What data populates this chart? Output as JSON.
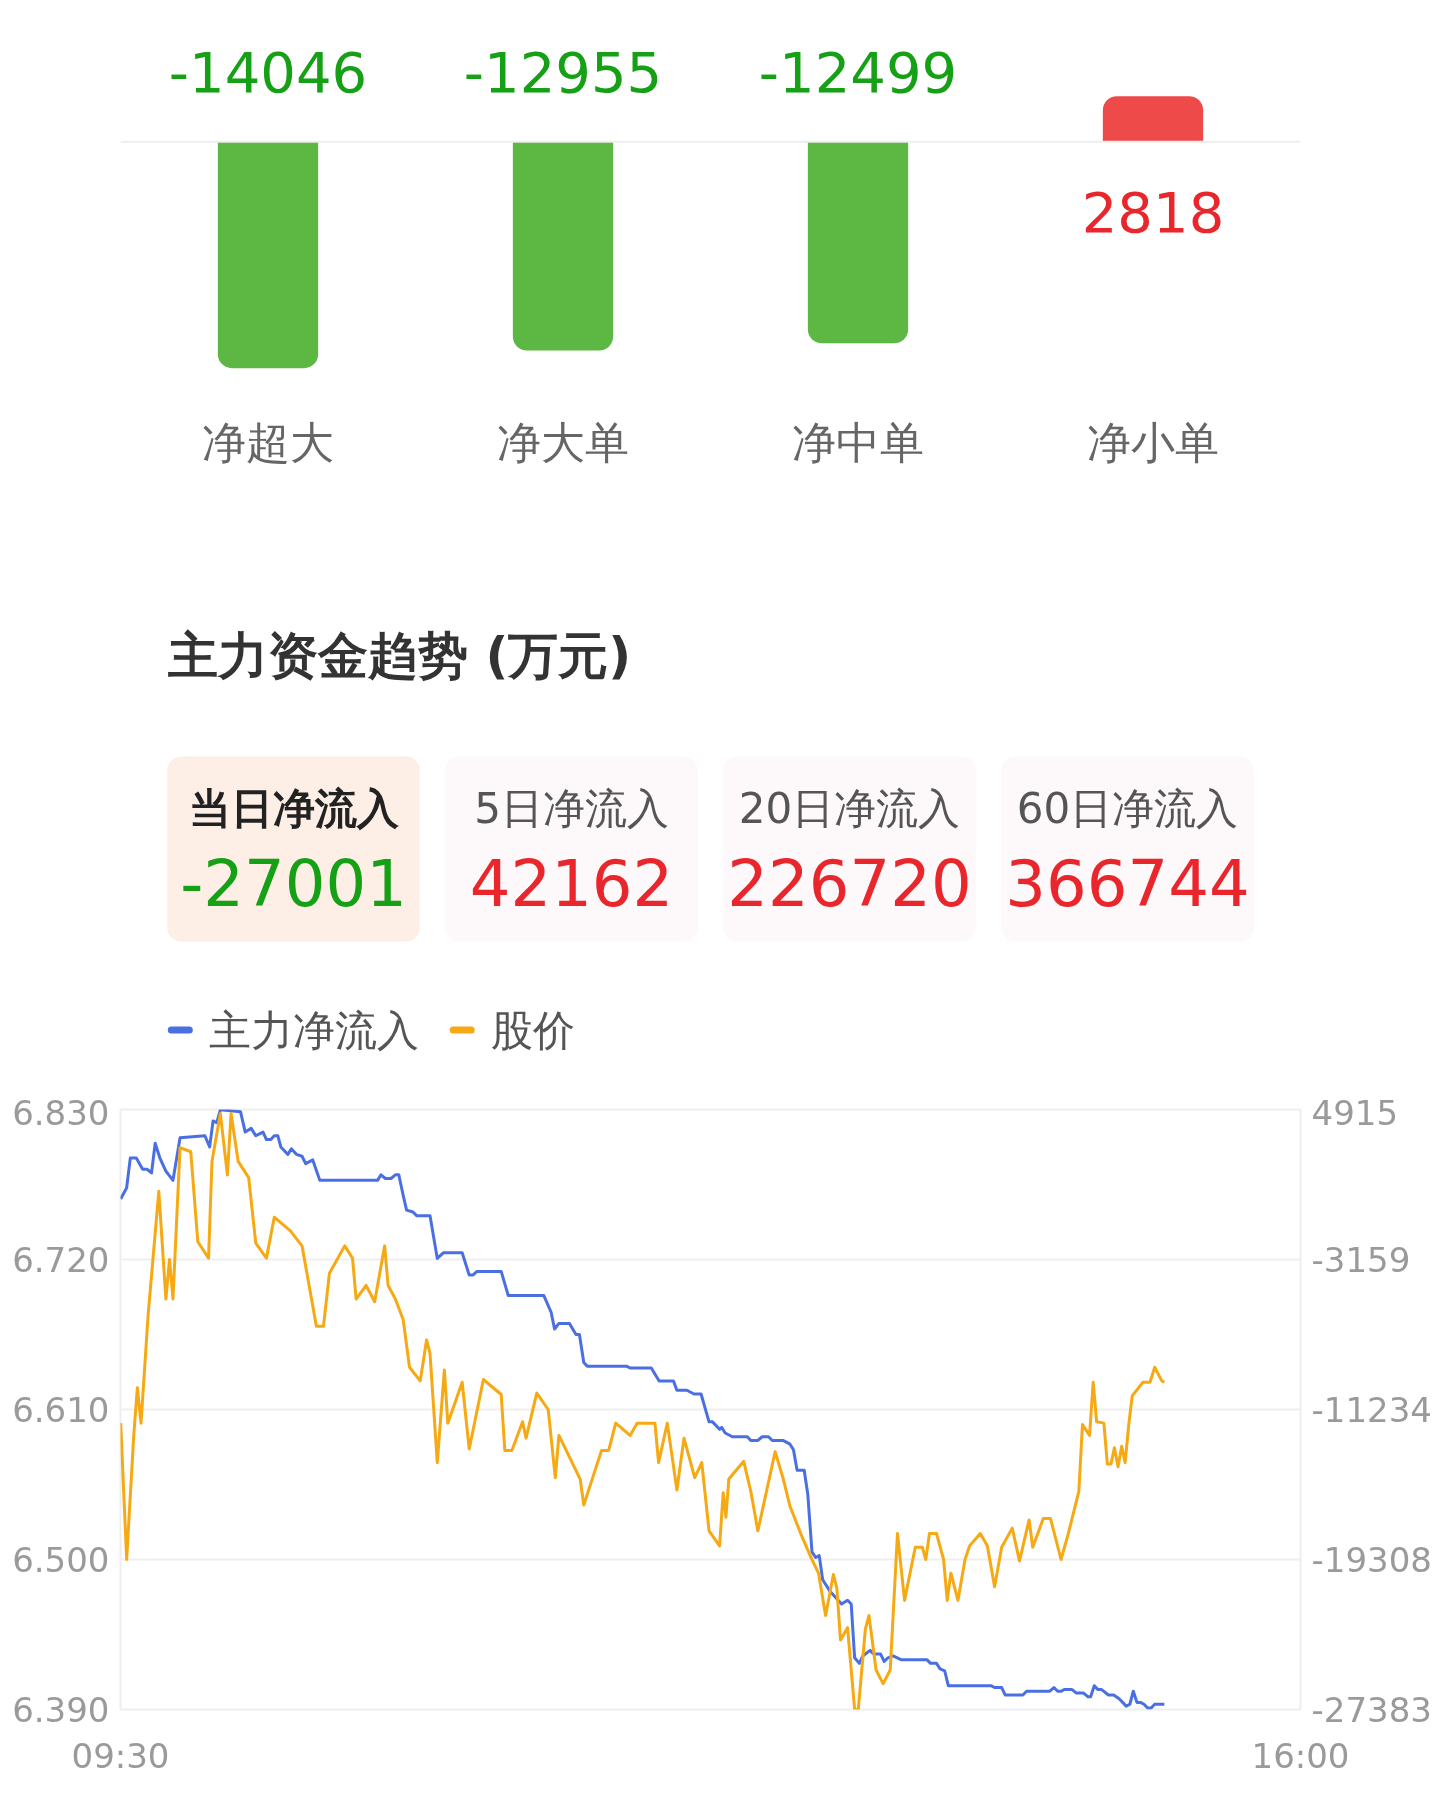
{
  "chart_data": [
    {
      "type": "bar",
      "categories": [
        "净超大",
        "净大单",
        "净中单",
        "净小单"
      ],
      "values": [
        -14046,
        -12955,
        -12499,
        2818
      ],
      "colors": [
        "#5cb842",
        "#5cb842",
        "#5cb842",
        "#ee4a4a"
      ],
      "data_labels": true,
      "ref_lines": [
        {
          "axis": "y",
          "value": 0,
          "color": "#eeeeee"
        }
      ]
    },
    {
      "type": "other",
      "title": "主力资金趋势 (万元)",
      "categories": [
        "当日净流入",
        "5日净流入",
        "20日净流入",
        "60日净流入"
      ],
      "values": [
        -27001,
        42162,
        226720,
        366744
      ],
      "colors": [
        "#fdeee6",
        "#fdf8fa",
        "#fdf8fa",
        "#fdf8fa"
      ],
      "data_labels": true
    },
    {
      "type": "line",
      "xlim": [
        9.5,
        16
      ],
      "xticks": [
        {
          "value": 9.5,
          "label": "09:30"
        },
        {
          "value": 16,
          "label": "16:00"
        }
      ],
      "ylim": [
        6.39,
        6.83
      ],
      "yticks": [
        {
          "value": 6.39,
          "label": "6.390"
        },
        {
          "value": 6.5,
          "label": "6.500"
        },
        {
          "value": 6.61,
          "label": "6.610"
        },
        {
          "value": 6.72,
          "label": "6.720"
        },
        {
          "value": 6.83,
          "label": "6.830"
        }
      ],
      "y2lim": [
        -27383,
        4915
      ],
      "y2ticks": [
        -27383,
        -19308,
        -11234,
        -3159,
        4915
      ],
      "grid": "y",
      "legend": "top left",
      "series": [
        {
          "name": "主力净流入",
          "color": "#4a6fe3",
          "axis": "y2",
          "x": [
            9.501,
            9.534,
            9.554,
            9.587,
            9.622,
            9.646,
            9.671,
            9.691,
            9.717,
            9.75,
            9.789,
            9.828,
            9.965,
            9.991,
            10.01,
            10.03,
            10.05,
            10.161,
            10.187,
            10.22,
            10.245,
            10.285,
            10.304,
            10.328,
            10.347,
            10.367,
            10.383,
            10.422,
            10.441,
            10.469,
            10.5,
            10.52,
            10.559,
            10.598,
            10.916,
            10.935,
            10.959,
            10.99,
            11.014,
            11.033,
            11.057,
            11.076,
            11.111,
            11.131,
            11.205,
            11.245,
            11.278,
            11.382,
            11.421,
            11.441,
            11.464,
            11.597,
            11.636,
            11.832,
            11.872,
            11.891,
            11.915,
            11.973,
            12.009,
            12.028,
            12.052,
            12.071,
            12.287,
            12.307,
            12.424,
            12.467,
            12.546,
            12.565,
            12.62,
            12.659,
            12.698,
            12.742,
            12.761,
            12.8,
            12.812,
            12.831,
            12.87,
            12.953,
            12.972,
            13.011,
            13.035,
            13.07,
            13.09,
            13.149,
            13.188,
            13.207,
            13.227,
            13.266,
            13.286,
            13.309,
            13.329,
            13.349,
            13.368,
            13.407,
            13.472,
            13.505,
            13.525,
            13.544,
            13.57,
            13.589,
            13.629,
            13.648,
            13.687,
            13.707,
            13.727,
            13.756,
            13.799,
            13.942,
            13.962,
            13.995,
            14.015,
            14.04,
            14.06,
            14.295,
            14.315,
            14.354,
            14.373,
            14.471,
            14.491,
            14.619,
            14.642,
            14.662,
            14.681,
            14.701,
            14.74,
            14.766,
            14.805,
            14.83,
            14.844,
            14.864,
            14.883,
            14.903,
            14.942,
            14.971,
            15.001,
            15.04,
            15.06,
            15.079,
            15.099,
            15.118,
            15.138,
            15.158,
            15.177,
            15.197,
            15.25
          ],
          "values": [
            100,
            700,
            2300,
            2300,
            1700,
            1700,
            1500,
            3100,
            2300,
            1600,
            1100,
            3400,
            3500,
            2900,
            4300,
            4200,
            4900,
            4800,
            3700,
            3900,
            3500,
            3700,
            3300,
            3300,
            3500,
            3500,
            2900,
            2500,
            2800,
            2500,
            2400,
            2000,
            2200,
            1100,
            1100,
            1400,
            1200,
            1200,
            1400,
            1400,
            300,
            -500,
            -600,
            -800,
            -800,
            -3100,
            -2800,
            -2800,
            -4000,
            -4000,
            -3800,
            -3800,
            -5100,
            -5100,
            -6000,
            -6900,
            -6600,
            -6600,
            -7200,
            -7200,
            -8700,
            -8900,
            -8900,
            -9000,
            -9000,
            -9700,
            -9700,
            -10200,
            -10200,
            -10400,
            -10400,
            -11900,
            -11900,
            -12300,
            -12200,
            -12500,
            -12700,
            -12700,
            -12900,
            -12900,
            -12700,
            -12700,
            -12900,
            -12900,
            -13100,
            -13400,
            -14500,
            -14500,
            -15800,
            -18900,
            -19200,
            -19100,
            -20400,
            -21000,
            -21700,
            -21500,
            -21700,
            -24600,
            -24900,
            -24500,
            -24200,
            -24400,
            -24400,
            -24800,
            -24600,
            -24500,
            -24700,
            -24700,
            -24900,
            -24900,
            -25200,
            -25300,
            -26100,
            -26100,
            -26200,
            -26200,
            -26600,
            -26600,
            -26400,
            -26400,
            -26200,
            -26400,
            -26400,
            -26300,
            -26300,
            -26500,
            -26500,
            -26700,
            -26700,
            -26100,
            -26300,
            -26300,
            -26600,
            -26600,
            -26800,
            -27200,
            -27100,
            -26400,
            -27000,
            -27000,
            -27100,
            -27300,
            -27300,
            -27100,
            -27100
          ]
        },
        {
          "name": "股价",
          "color": "#f6a912",
          "x": [
            9.501,
            9.534,
            9.573,
            9.593,
            9.613,
            9.652,
            9.711,
            9.75,
            9.77,
            9.789,
            9.828,
            9.887,
            9.926,
            9.985,
            10.004,
            10.05,
            10.089,
            10.109,
            10.148,
            10.206,
            10.245,
            10.304,
            10.347,
            10.436,
            10.5,
            10.579,
            10.618,
            10.651,
            10.735,
            10.778,
            10.798,
            10.853,
            10.9,
            10.955,
            10.974,
            11.014,
            11.057,
            11.092,
            11.151,
            11.186,
            11.205,
            11.245,
            11.284,
            11.303,
            11.382,
            11.421,
            11.499,
            11.597,
            11.617,
            11.656,
            11.715,
            11.734,
            11.793,
            11.856,
            11.895,
            11.915,
            12.032,
            12.052,
            12.15,
            12.189,
            12.228,
            12.307,
            12.346,
            12.444,
            12.464,
            12.512,
            12.565,
            12.604,
            12.663,
            12.702,
            12.742,
            12.8,
            12.82,
            12.835,
            12.851,
            12.933,
            12.972,
            13.011,
            13.106,
            13.149,
            13.188,
            13.247,
            13.305,
            13.345,
            13.384,
            13.427,
            13.446,
            13.466,
            13.505,
            13.544,
            13.564,
            13.603,
            13.623,
            13.662,
            13.701,
            13.74,
            13.78,
            13.819,
            13.878,
            13.917,
            13.936,
            13.956,
            13.995,
            14.034,
            14.054,
            14.074,
            14.113,
            14.152,
            14.177,
            14.236,
            14.275,
            14.315,
            14.354,
            14.412,
            14.452,
            14.505,
            14.525,
            14.583,
            14.623,
            14.681,
            14.721,
            14.779,
            14.799,
            14.838,
            14.858,
            14.877,
            14.917,
            14.936,
            14.956,
            14.975,
            14.995,
            15.015,
            15.034,
            15.054,
            15.073,
            15.132,
            15.171,
            15.197,
            15.236,
            15.25
          ],
          "values": [
            6.6,
            6.5,
            6.591,
            6.626,
            6.6,
            6.679,
            6.77,
            6.691,
            6.72,
            6.691,
            6.802,
            6.799,
            6.733,
            6.721,
            6.792,
            6.827,
            6.782,
            6.827,
            6.792,
            6.78,
            6.732,
            6.721,
            6.751,
            6.741,
            6.73,
            6.671,
            6.671,
            6.71,
            6.73,
            6.721,
            6.691,
            6.701,
            6.689,
            6.73,
            6.701,
            6.691,
            6.676,
            6.641,
            6.631,
            6.661,
            6.651,
            6.571,
            6.639,
            6.6,
            6.63,
            6.581,
            6.632,
            6.621,
            6.58,
            6.58,
            6.601,
            6.589,
            6.622,
            6.61,
            6.56,
            6.591,
            6.559,
            6.54,
            6.58,
            6.58,
            6.6,
            6.591,
            6.6,
            6.6,
            6.571,
            6.6,
            6.551,
            6.589,
            6.56,
            6.571,
            6.521,
            6.51,
            6.549,
            6.531,
            6.559,
            6.572,
            6.55,
            6.521,
            6.579,
            6.56,
            6.539,
            6.519,
            6.501,
            6.49,
            6.459,
            6.489,
            6.479,
            6.441,
            6.45,
            6.39,
            6.39,
            6.449,
            6.459,
            6.419,
            6.409,
            6.419,
            6.519,
            6.47,
            6.509,
            6.509,
            6.5,
            6.519,
            6.519,
            6.5,
            6.47,
            6.49,
            6.47,
            6.5,
            6.51,
            6.519,
            6.51,
            6.48,
            6.509,
            6.523,
            6.499,
            6.529,
            6.509,
            6.53,
            6.53,
            6.5,
            6.519,
            6.55,
            6.599,
            6.591,
            6.63,
            6.601,
            6.6,
            6.57,
            6.57,
            6.582,
            6.568,
            6.583,
            6.571,
            6.599,
            6.62,
            6.63,
            6.63,
            6.641,
            6.631,
            6.63
          ]
        }
      ]
    }
  ]
}
